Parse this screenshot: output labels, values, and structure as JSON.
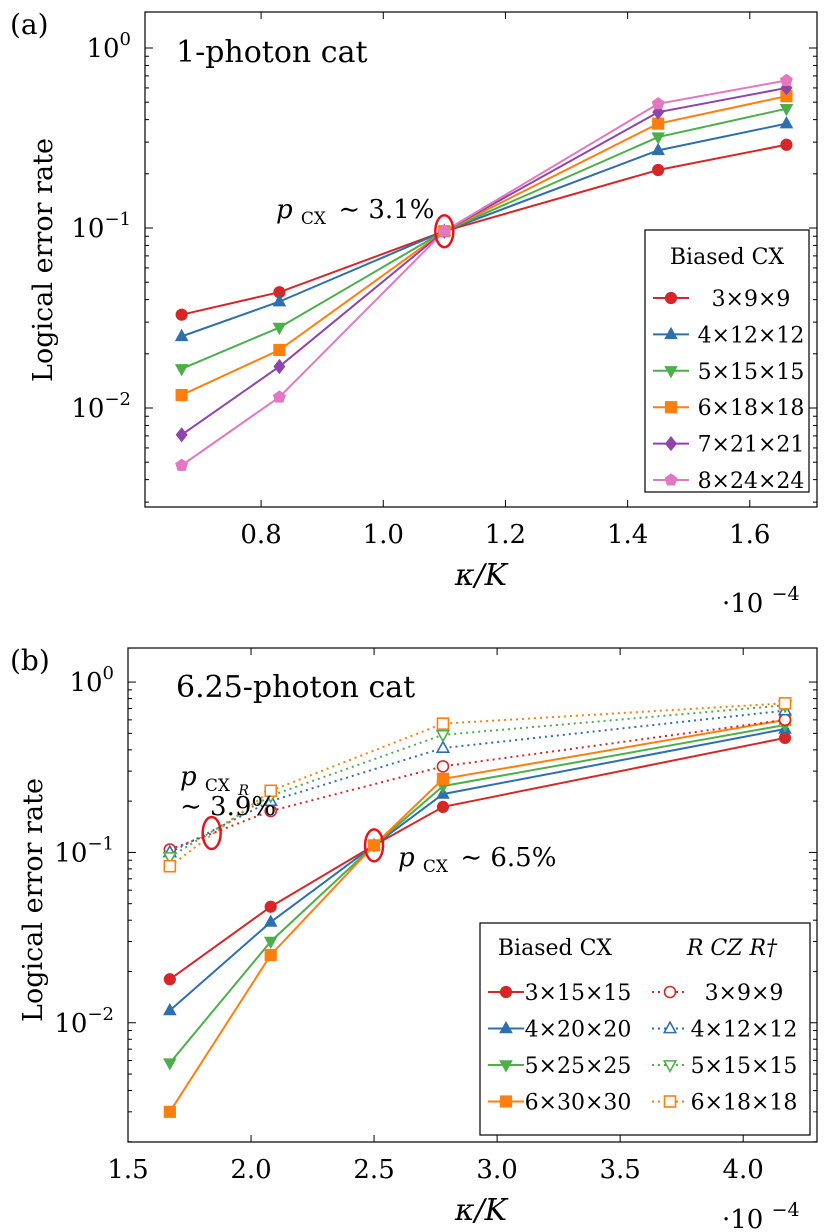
{
  "chart_data": [
    {
      "panel_label": "(a)",
      "type": "line",
      "title": "1-photon cat",
      "xlabel": "κ/K",
      "ylabel": "Logical error rate",
      "x_multiplier": "·10",
      "x_multiplier_exp": "−4",
      "xlim": [
        0.61,
        1.71
      ],
      "ylim_log10": [
        -2.55,
        0.2
      ],
      "yscale": "log",
      "x_ticks": [
        0.8,
        1.0,
        1.2,
        1.4,
        1.6
      ],
      "x_tick_labels": [
        "0.8",
        "1.0",
        "1.2",
        "1.4",
        "1.6"
      ],
      "y_ticks_exp": [
        -2,
        -1,
        0
      ],
      "y_tick_labels": [
        "10",
        "10",
        "10"
      ],
      "y_tick_exps": [
        "−2",
        "−1",
        "0"
      ],
      "x": [
        0.67,
        0.83,
        1.1,
        1.45,
        1.66
      ],
      "legend_title": "Biased CX",
      "legend_position": "bottom-right",
      "series": [
        {
          "name": "3×9×9",
          "color": "#d62728",
          "marker": "circle",
          "dash": false,
          "values": [
            0.033,
            0.044,
            0.096,
            0.21,
            0.29
          ]
        },
        {
          "name": "4×12×12",
          "color": "#2e6fad",
          "marker": "triangle-up",
          "dash": false,
          "values": [
            0.025,
            0.039,
            0.096,
            0.27,
            0.38
          ]
        },
        {
          "name": "5×15×15",
          "color": "#4daf4a",
          "marker": "triangle-down",
          "dash": false,
          "values": [
            0.0165,
            0.028,
            0.096,
            0.32,
            0.46
          ]
        },
        {
          "name": "6×18×18",
          "color": "#ff7f0e",
          "marker": "square",
          "dash": false,
          "values": [
            0.0118,
            0.021,
            0.096,
            0.38,
            0.54
          ]
        },
        {
          "name": "7×21×21",
          "color": "#8e44ad",
          "marker": "diamond",
          "dash": false,
          "values": [
            0.0071,
            0.017,
            0.096,
            0.44,
            0.6
          ]
        },
        {
          "name": "8×24×24",
          "color": "#e377c2",
          "marker": "pentagon",
          "dash": false,
          "values": [
            0.0048,
            0.0115,
            0.096,
            0.49,
            0.66
          ]
        }
      ],
      "annotations": [
        {
          "text": "∼ 3.1%",
          "symbol": "p",
          "sub": "CX",
          "x": 1.1,
          "y": 0.096
        }
      ],
      "ellipses": [
        {
          "x": 1.1,
          "y": 0.096
        }
      ]
    },
    {
      "panel_label": "(b)",
      "type": "line",
      "title": "6.25-photon cat",
      "xlabel": "κ/K",
      "ylabel": "Logical error rate",
      "x_multiplier": "·10",
      "x_multiplier_exp": "−4",
      "xlim": [
        1.5,
        4.3
      ],
      "ylim_log10": [
        -2.7,
        0.2
      ],
      "yscale": "log",
      "x_ticks": [
        1.5,
        2.0,
        2.5,
        3.0,
        3.5,
        4.0
      ],
      "x_tick_labels": [
        "1.5",
        "2.0",
        "2.5",
        "3.0",
        "3.5",
        "4.0"
      ],
      "y_ticks_exp": [
        -2,
        -1,
        0
      ],
      "y_tick_labels": [
        "10",
        "10",
        "10"
      ],
      "y_tick_exps": [
        "−2",
        "−1",
        "0"
      ],
      "x": [
        1.67,
        2.08,
        2.5,
        2.78,
        4.17
      ],
      "legend_titles": [
        "Biased CX",
        "R CZ R†"
      ],
      "legend_position": "bottom-right",
      "series": [
        {
          "name": "3×15×15",
          "color": "#d62728",
          "marker": "circle",
          "dash": false,
          "x": [
            1.67,
            2.08,
            2.5,
            2.78,
            4.17
          ],
          "values": [
            0.018,
            0.048,
            0.11,
            0.185,
            0.47
          ]
        },
        {
          "name": "4×20×20",
          "color": "#2e6fad",
          "marker": "triangle-up",
          "dash": false,
          "x": [
            1.67,
            2.08,
            2.5,
            2.78,
            4.17
          ],
          "values": [
            0.0118,
            0.039,
            0.11,
            0.22,
            0.53
          ]
        },
        {
          "name": "5×25×25",
          "color": "#4daf4a",
          "marker": "triangle-down",
          "dash": false,
          "x": [
            1.67,
            2.08,
            2.5,
            2.78,
            4.17
          ],
          "values": [
            0.0058,
            0.03,
            0.11,
            0.245,
            0.56
          ]
        },
        {
          "name": "6×30×30",
          "color": "#ff7f0e",
          "marker": "square",
          "dash": false,
          "x": [
            1.67,
            2.08,
            2.5,
            2.78,
            4.17
          ],
          "values": [
            0.003,
            0.025,
            0.11,
            0.27,
            0.6
          ]
        },
        {
          "name": "3×9×9",
          "color": "#d62728",
          "marker": "circle-open",
          "dash": true,
          "x": [
            1.67,
            2.08,
            2.78,
            4.17
          ],
          "values": [
            0.104,
            0.175,
            0.32,
            0.6
          ]
        },
        {
          "name": "4×12×12",
          "color": "#2e6fad",
          "marker": "triangle-up-open",
          "dash": true,
          "x": [
            1.67,
            2.08,
            2.78,
            4.17
          ],
          "values": [
            0.1,
            0.2,
            0.41,
            0.68
          ]
        },
        {
          "name": "5×15×15",
          "color": "#4daf4a",
          "marker": "triangle-down-open",
          "dash": true,
          "x": [
            1.67,
            2.08,
            2.78,
            4.17
          ],
          "values": [
            0.094,
            0.215,
            0.49,
            0.73
          ]
        },
        {
          "name": "6×18×18",
          "color": "#ff7f0e",
          "marker": "square-open",
          "dash": true,
          "x": [
            1.67,
            2.08,
            2.78,
            4.17
          ],
          "values": [
            0.083,
            0.23,
            0.57,
            0.75
          ]
        }
      ],
      "annotations": [
        {
          "text": "∼ 3.9%",
          "symbol": "p",
          "sub": "CX",
          "subsub": "R",
          "x": 1.84,
          "y": 0.13
        },
        {
          "text": "∼ 6.5%",
          "symbol": "p",
          "sub": "CX",
          "x": 2.5,
          "y": 0.11
        }
      ],
      "ellipses": [
        {
          "x": 1.84,
          "y": 0.13
        },
        {
          "x": 2.5,
          "y": 0.11
        }
      ]
    }
  ]
}
